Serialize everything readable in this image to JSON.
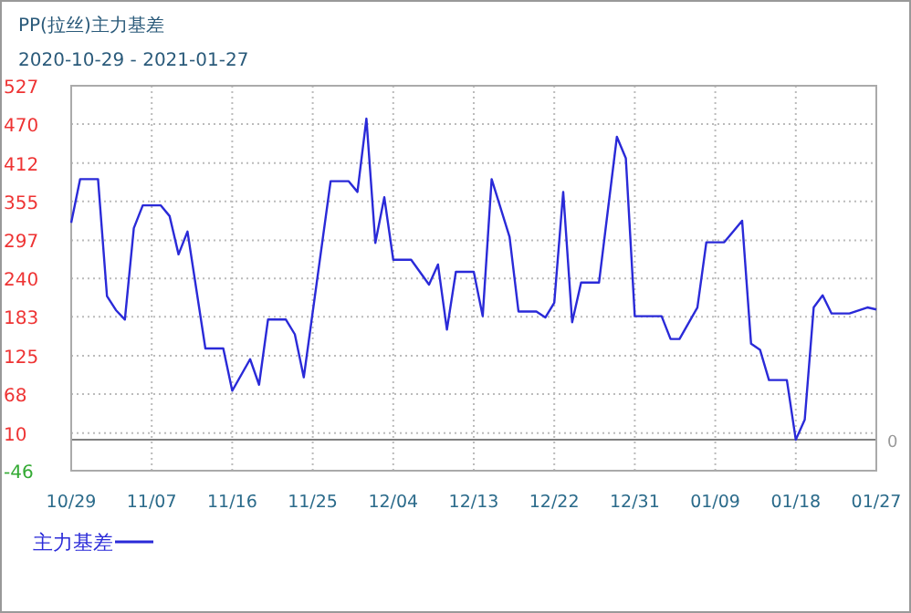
{
  "chart_data": {
    "type": "line",
    "title": "PP(拉丝)主力基差",
    "subtitle": "2020-10-29 - 2021-01-27",
    "x": [
      "2020-10-29",
      "2020-10-30",
      "2020-11-01",
      "2020-11-02",
      "2020-11-03",
      "2020-11-04",
      "2020-11-05",
      "2020-11-06",
      "2020-11-08",
      "2020-11-09",
      "2020-11-10",
      "2020-11-11",
      "2020-11-13",
      "2020-11-15",
      "2020-11-16",
      "2020-11-18",
      "2020-11-19",
      "2020-11-20",
      "2020-11-22",
      "2020-11-23",
      "2020-11-24",
      "2020-11-27",
      "2020-11-29",
      "2020-11-30",
      "2020-12-01",
      "2020-12-02",
      "2020-12-03",
      "2020-12-04",
      "2020-12-06",
      "2020-12-08",
      "2020-12-09",
      "2020-12-10",
      "2020-12-11",
      "2020-12-13",
      "2020-12-14",
      "2020-12-15",
      "2020-12-17",
      "2020-12-18",
      "2020-12-20",
      "2020-12-21",
      "2020-12-22",
      "2020-12-23",
      "2020-12-24",
      "2020-12-25",
      "2020-12-27",
      "2020-12-29",
      "2020-12-30",
      "2020-12-31",
      "2021-01-03",
      "2021-01-04",
      "2021-01-05",
      "2021-01-07",
      "2021-01-08",
      "2021-01-10",
      "2021-01-12",
      "2021-01-13",
      "2021-01-14",
      "2021-01-15",
      "2021-01-17",
      "2021-01-18",
      "2021-01-19",
      "2021-01-20",
      "2021-01-21",
      "2021-01-22",
      "2021-01-24",
      "2021-01-26",
      "2021-01-27"
    ],
    "series": [
      {
        "name": "主力基差",
        "color": "#2a2ad8",
        "values": [
          323,
          388,
          388,
          214,
          193,
          179,
          315,
          349,
          349,
          333,
          276,
          310,
          136,
          136,
          73,
          120,
          82,
          179,
          179,
          157,
          93,
          385,
          385,
          369,
          478,
          293,
          361,
          268,
          268,
          231,
          261,
          164,
          250,
          250,
          184,
          388,
          302,
          191,
          191,
          182,
          204,
          369,
          175,
          234,
          234,
          451,
          419,
          184,
          184,
          150,
          150,
          197,
          294,
          294,
          326,
          143,
          134,
          89,
          89,
          0,
          30,
          197,
          215,
          188,
          188,
          197,
          194
        ]
      }
    ],
    "xlim": [
      "2020-10-29",
      "2021-01-27"
    ],
    "xticks": [
      {
        "value": "2020-10-29",
        "label": "10/29"
      },
      {
        "value": "2020-11-07",
        "label": "11/07"
      },
      {
        "value": "2020-11-16",
        "label": "11/16"
      },
      {
        "value": "2020-11-25",
        "label": "11/25"
      },
      {
        "value": "2020-12-04",
        "label": "12/04"
      },
      {
        "value": "2020-12-13",
        "label": "12/13"
      },
      {
        "value": "2020-12-22",
        "label": "12/22"
      },
      {
        "value": "2020-12-31",
        "label": "12/31"
      },
      {
        "value": "2021-01-09",
        "label": "01/09"
      },
      {
        "value": "2021-01-18",
        "label": "01/18"
      },
      {
        "value": "2021-01-27",
        "label": "01/27"
      }
    ],
    "ylim": [
      -46,
      527
    ],
    "yticks": [
      -46,
      10,
      68,
      125,
      183,
      240,
      297,
      355,
      412,
      470,
      527
    ],
    "ref_lines": [
      {
        "axis": "y",
        "value": 0,
        "label": "0",
        "color": "#808080",
        "line_style": "solid"
      }
    ],
    "grid": true,
    "legend": "bottom left",
    "marker": "none",
    "line_style": "solid"
  }
}
